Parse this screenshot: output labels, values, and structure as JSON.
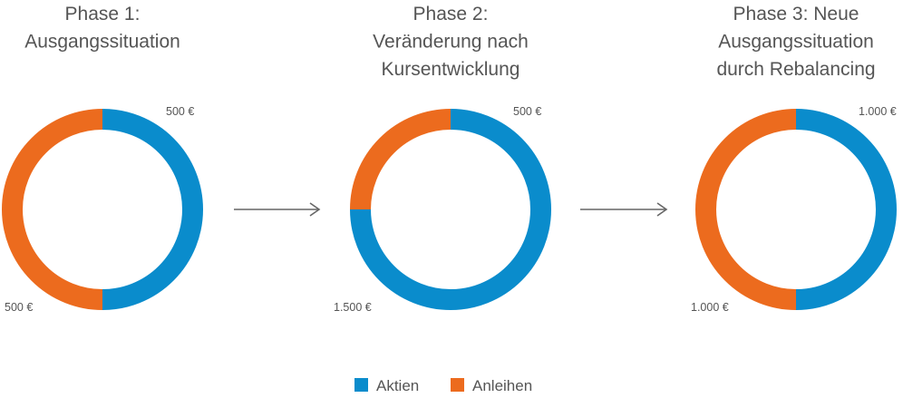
{
  "chart_data": [
    {
      "type": "pie",
      "title_lines": [
        "Phase 1:",
        "Ausgangssituation"
      ],
      "series": [
        {
          "name": "Aktien",
          "value": 500,
          "label": "500 €"
        },
        {
          "name": "Anleihen",
          "value": 500,
          "label": "500 €"
        }
      ]
    },
    {
      "type": "pie",
      "title_lines": [
        "Phase 2:",
        "Veränderung nach",
        "Kursentwicklung"
      ],
      "series": [
        {
          "name": "Aktien",
          "value": 1500,
          "label": "1.500 €"
        },
        {
          "name": "Anleihen",
          "value": 500,
          "label": "500 €"
        }
      ]
    },
    {
      "type": "pie",
      "title_lines": [
        "Phase 3: Neue",
        "Ausgangssituation",
        "durch Rebalancing"
      ],
      "series": [
        {
          "name": "Aktien",
          "value": 1000,
          "label": "1.000 €"
        },
        {
          "name": "Anleihen",
          "value": 1000,
          "label": "1.000 €"
        }
      ]
    }
  ],
  "legend": [
    {
      "name": "Aktien",
      "color": "#0a8ccc"
    },
    {
      "name": "Anleihen",
      "color": "#ec6b1e"
    }
  ],
  "colors": {
    "Aktien": "#0a8ccc",
    "Anleihen": "#ec6b1e",
    "arrow": "#666666",
    "text": "#555555"
  }
}
